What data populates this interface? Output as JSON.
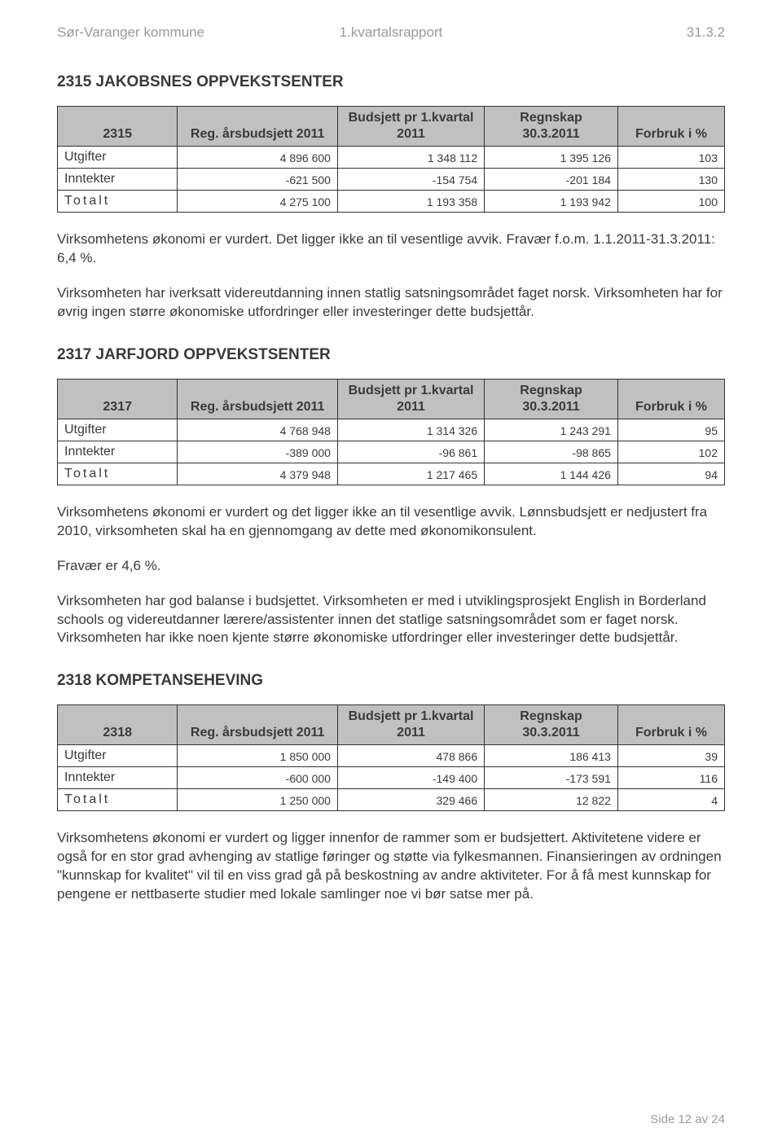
{
  "header": {
    "left": "Sør-Varanger kommune",
    "center": "1.kvartalsrapport",
    "right": "31.3.2"
  },
  "footer": "Side 12 av 24",
  "sections": [
    {
      "title": "2315  JAKOBSNES OPPVEKSTSENTER",
      "table": {
        "id_col": "2315",
        "columns": [
          "Reg. årsbudsjett 2011",
          "Budsjett pr 1.kvartal 2011",
          "Regnskap 30.3.2011",
          "Forbruk i %"
        ],
        "rows": [
          {
            "label": "Utgifter",
            "spaced": false,
            "values": [
              "4 896 600",
              "1 348 112",
              "1 395 126",
              "103"
            ]
          },
          {
            "label": "Inntekter",
            "spaced": false,
            "values": [
              "-621 500",
              "-154 754",
              "-201 184",
              "130"
            ]
          },
          {
            "label": "Totalt",
            "spaced": true,
            "values": [
              "4 275 100",
              "1 193 358",
              "1 193 942",
              "100"
            ]
          }
        ]
      },
      "paragraphs": [
        "Virksomhetens økonomi er vurdert. Det ligger ikke an til vesentlige avvik. Fravær f.o.m. 1.1.2011-31.3.2011: 6,4 %.",
        "Virksomheten har iverksatt videreutdanning innen statlig satsningsområdet faget norsk. Virksomheten har for øvrig ingen større økonomiske utfordringer eller investeringer dette budsjettår."
      ]
    },
    {
      "title": "2317  JARFJORD OPPVEKSTSENTER",
      "table": {
        "id_col": "2317",
        "columns": [
          "Reg. årsbudsjett 2011",
          "Budsjett pr 1.kvartal 2011",
          "Regnskap 30.3.2011",
          "Forbruk i %"
        ],
        "rows": [
          {
            "label": "Utgifter",
            "spaced": false,
            "values": [
              "4 768 948",
              "1 314 326",
              "1 243 291",
              "95"
            ]
          },
          {
            "label": "Inntekter",
            "spaced": false,
            "values": [
              "-389 000",
              "-96 861",
              "-98 865",
              "102"
            ]
          },
          {
            "label": "Totalt",
            "spaced": true,
            "values": [
              "4 379 948",
              "1 217 465",
              "1 144 426",
              "94"
            ]
          }
        ]
      },
      "paragraphs": [
        "Virksomhetens økonomi er vurdert og det ligger ikke an til vesentlige avvik. Lønnsbudsjett er nedjustert fra 2010, virksomheten skal ha en gjennomgang av dette med økonomikonsulent.",
        "Fravær er 4,6 %.",
        "Virksomheten har god balanse i budsjettet. Virksomheten er med i utviklingsprosjekt English in Borderland schools og videreutdanner lærere/assistenter innen det statlige satsningsområdet som er faget norsk. Virksomheten har ikke noen kjente større økonomiske utfordringer eller investeringer dette budsjettår."
      ]
    },
    {
      "title": "2318  KOMPETANSEHEVING",
      "table": {
        "id_col": "2318",
        "columns": [
          "Reg. årsbudsjett 2011",
          "Budsjett pr 1.kvartal 2011",
          "Regnskap 30.3.2011",
          "Forbruk i %"
        ],
        "rows": [
          {
            "label": "Utgifter",
            "spaced": false,
            "values": [
              "1 850 000",
              "478 866",
              "186 413",
              "39"
            ]
          },
          {
            "label": "Inntekter",
            "spaced": false,
            "values": [
              "-600 000",
              "-149 400",
              "-173 591",
              "116"
            ]
          },
          {
            "label": "Totalt",
            "spaced": true,
            "values": [
              "1 250 000",
              "329 466",
              "12 822",
              "4"
            ]
          }
        ]
      },
      "paragraphs": [
        "Virksomhetens økonomi er vurdert og ligger innenfor de rammer som er budsjettert. Aktivitetene videre er også for en stor grad avhenging av statlige føringer og støtte via fylkesmannen. Finansieringen av ordningen \"kunnskap for kvalitet\" vil til en viss grad gå på beskostning av andre aktiviteter. For å få mest kunnskap for pengene er nettbaserte studier med lokale samlinger noe vi bør satse mer på."
      ]
    }
  ]
}
